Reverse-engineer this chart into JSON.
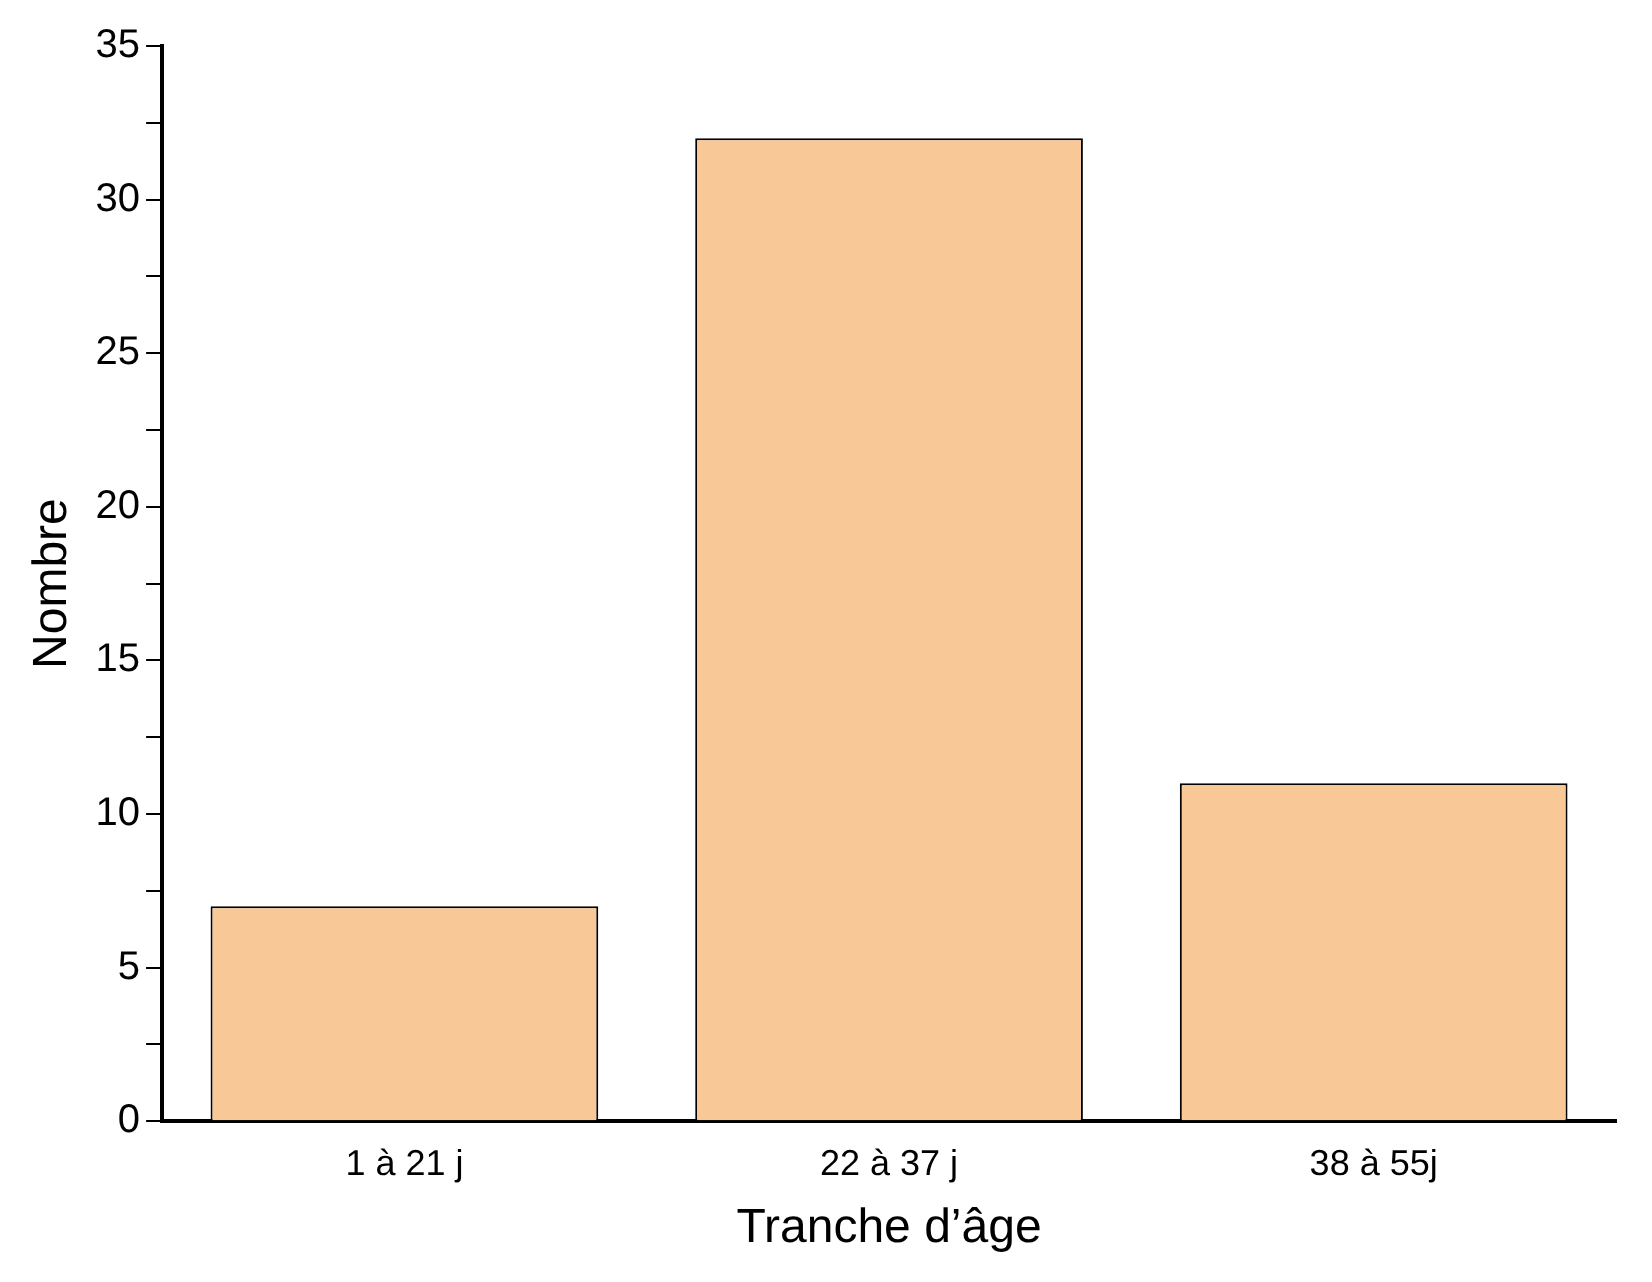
{
  "chart_data": {
    "type": "bar",
    "xlabel": "Tranche d’âge",
    "ylabel": "Nombre",
    "categories": [
      "1 à 21 j",
      "22 à 37 j",
      "38 à 55j"
    ],
    "values": [
      7,
      32,
      11
    ],
    "color": "#f9c897",
    "ylim": [
      0,
      35
    ],
    "yticks": [
      0,
      {
        "value": 2.5,
        "label": null
      },
      5,
      {
        "value": 7.5,
        "label": null
      },
      10,
      {
        "value": 12.5,
        "label": null
      },
      15,
      {
        "value": 17.5,
        "label": null
      },
      20,
      {
        "value": 22.5,
        "label": null
      },
      25,
      {
        "value": 27.5,
        "label": null
      },
      30,
      {
        "value": 32.5,
        "label": null
      },
      35
    ],
    "grid": false,
    "legend": false
  }
}
